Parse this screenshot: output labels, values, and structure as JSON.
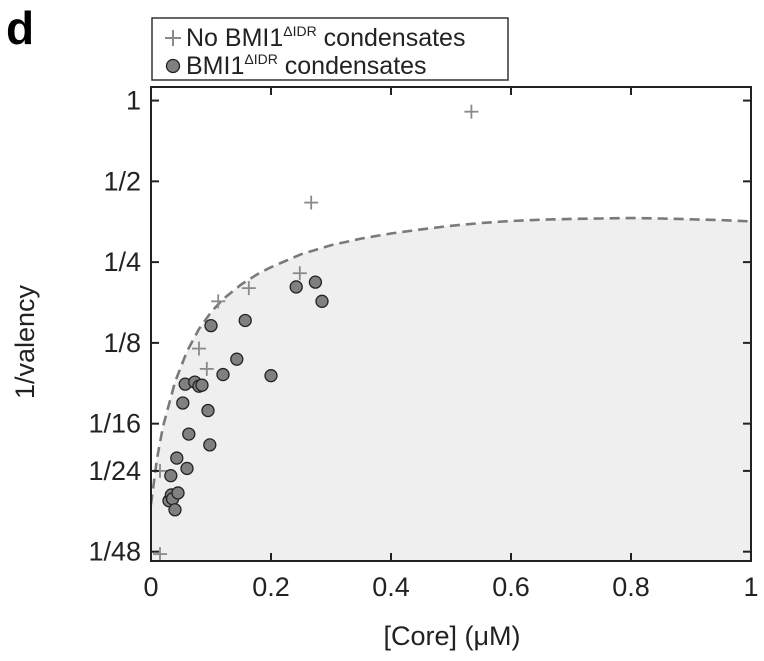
{
  "panel_label": "d",
  "chart_data": {
    "type": "scatter",
    "title": "",
    "xlabel": "[Core] (μM)",
    "ylabel": "1/valency",
    "x_scale": "linear",
    "y_scale": "log2",
    "xlim": [
      0,
      1
    ],
    "ylim_valency": [
      52,
      0.89
    ],
    "xticks": [
      {
        "value": 0,
        "label": "0"
      },
      {
        "value": 0.2,
        "label": "0.2"
      },
      {
        "value": 0.4,
        "label": "0.4"
      },
      {
        "value": 0.6,
        "label": "0.6"
      },
      {
        "value": 0.8,
        "label": "0.8"
      },
      {
        "value": 1,
        "label": "1"
      }
    ],
    "yticks": [
      {
        "value": 1,
        "label": "1"
      },
      {
        "value": 2,
        "label": "1/2"
      },
      {
        "value": 4,
        "label": "1/4"
      },
      {
        "value": 8,
        "label": "1/8"
      },
      {
        "value": 16,
        "label": "1/16"
      },
      {
        "value": 24,
        "label": "1/24"
      },
      {
        "value": 48,
        "label": "1/48"
      }
    ],
    "grid": false,
    "legend": {
      "position": "top-left, above axes",
      "entries": [
        {
          "marker": "plus",
          "text": "No BMI1",
          "superscript": "ΔIDR",
          "suffix": " condensates"
        },
        {
          "marker": "circle",
          "text": "BMI1",
          "superscript": "ΔIDR",
          "suffix": " condensates"
        }
      ]
    },
    "shaded_region": {
      "description": "region beneath dashed boundary curve",
      "color": "#efefef"
    },
    "boundary_curve": {
      "style": "dashed",
      "color": "#7a7a7a",
      "x": [
        0,
        0.01,
        0.02,
        0.04,
        0.06,
        0.08,
        0.1,
        0.12,
        0.15,
        0.18,
        0.2,
        0.25,
        0.3,
        0.35,
        0.4,
        0.45,
        0.5,
        0.55,
        0.6,
        0.65,
        0.7,
        0.75,
        0.8,
        0.85,
        0.9,
        0.95,
        1.0
      ],
      "valency": [
        32,
        21.6,
        16.4,
        11.2,
        8.6,
        7.1,
        6.15,
        5.5,
        4.85,
        4.4,
        4.18,
        3.74,
        3.46,
        3.27,
        3.13,
        3.02,
        2.93,
        2.86,
        2.81,
        2.78,
        2.76,
        2.75,
        2.74,
        2.75,
        2.77,
        2.79,
        2.82
      ]
    },
    "series": [
      {
        "name": "No BMI1ΔIDR condensates",
        "marker": "plus",
        "color": "#8a8a8a",
        "points": [
          {
            "x": 0.015,
            "valency": 24
          },
          {
            "x": 0.015,
            "valency": 49
          },
          {
            "x": 0.08,
            "valency": 8.4
          },
          {
            "x": 0.093,
            "valency": 10
          },
          {
            "x": 0.112,
            "valency": 5.6
          },
          {
            "x": 0.163,
            "valency": 5.0
          },
          {
            "x": 0.248,
            "valency": 4.4
          },
          {
            "x": 0.267,
            "valency": 2.4
          },
          {
            "x": 0.534,
            "valency": 1.1
          }
        ]
      },
      {
        "name": "BMI1ΔIDR condensates",
        "marker": "circle",
        "color": "#808080",
        "points": [
          {
            "x": 0.03,
            "valency": 31
          },
          {
            "x": 0.033,
            "valency": 25
          },
          {
            "x": 0.034,
            "valency": 29.5
          },
          {
            "x": 0.036,
            "valency": 30.5
          },
          {
            "x": 0.04,
            "valency": 33.5
          },
          {
            "x": 0.043,
            "valency": 21.5
          },
          {
            "x": 0.045,
            "valency": 29
          },
          {
            "x": 0.053,
            "valency": 13.4
          },
          {
            "x": 0.057,
            "valency": 11.4
          },
          {
            "x": 0.06,
            "valency": 23.5
          },
          {
            "x": 0.063,
            "valency": 17.5
          },
          {
            "x": 0.073,
            "valency": 11.2
          },
          {
            "x": 0.08,
            "valency": 11.6
          },
          {
            "x": 0.085,
            "valency": 11.5
          },
          {
            "x": 0.095,
            "valency": 14.3
          },
          {
            "x": 0.098,
            "valency": 19.2
          },
          {
            "x": 0.1,
            "valency": 6.9
          },
          {
            "x": 0.12,
            "valency": 10.5
          },
          {
            "x": 0.143,
            "valency": 9.2
          },
          {
            "x": 0.157,
            "valency": 6.6
          },
          {
            "x": 0.2,
            "valency": 10.6
          },
          {
            "x": 0.242,
            "valency": 4.95
          },
          {
            "x": 0.274,
            "valency": 4.75
          },
          {
            "x": 0.285,
            "valency": 5.6
          }
        ]
      }
    ]
  }
}
